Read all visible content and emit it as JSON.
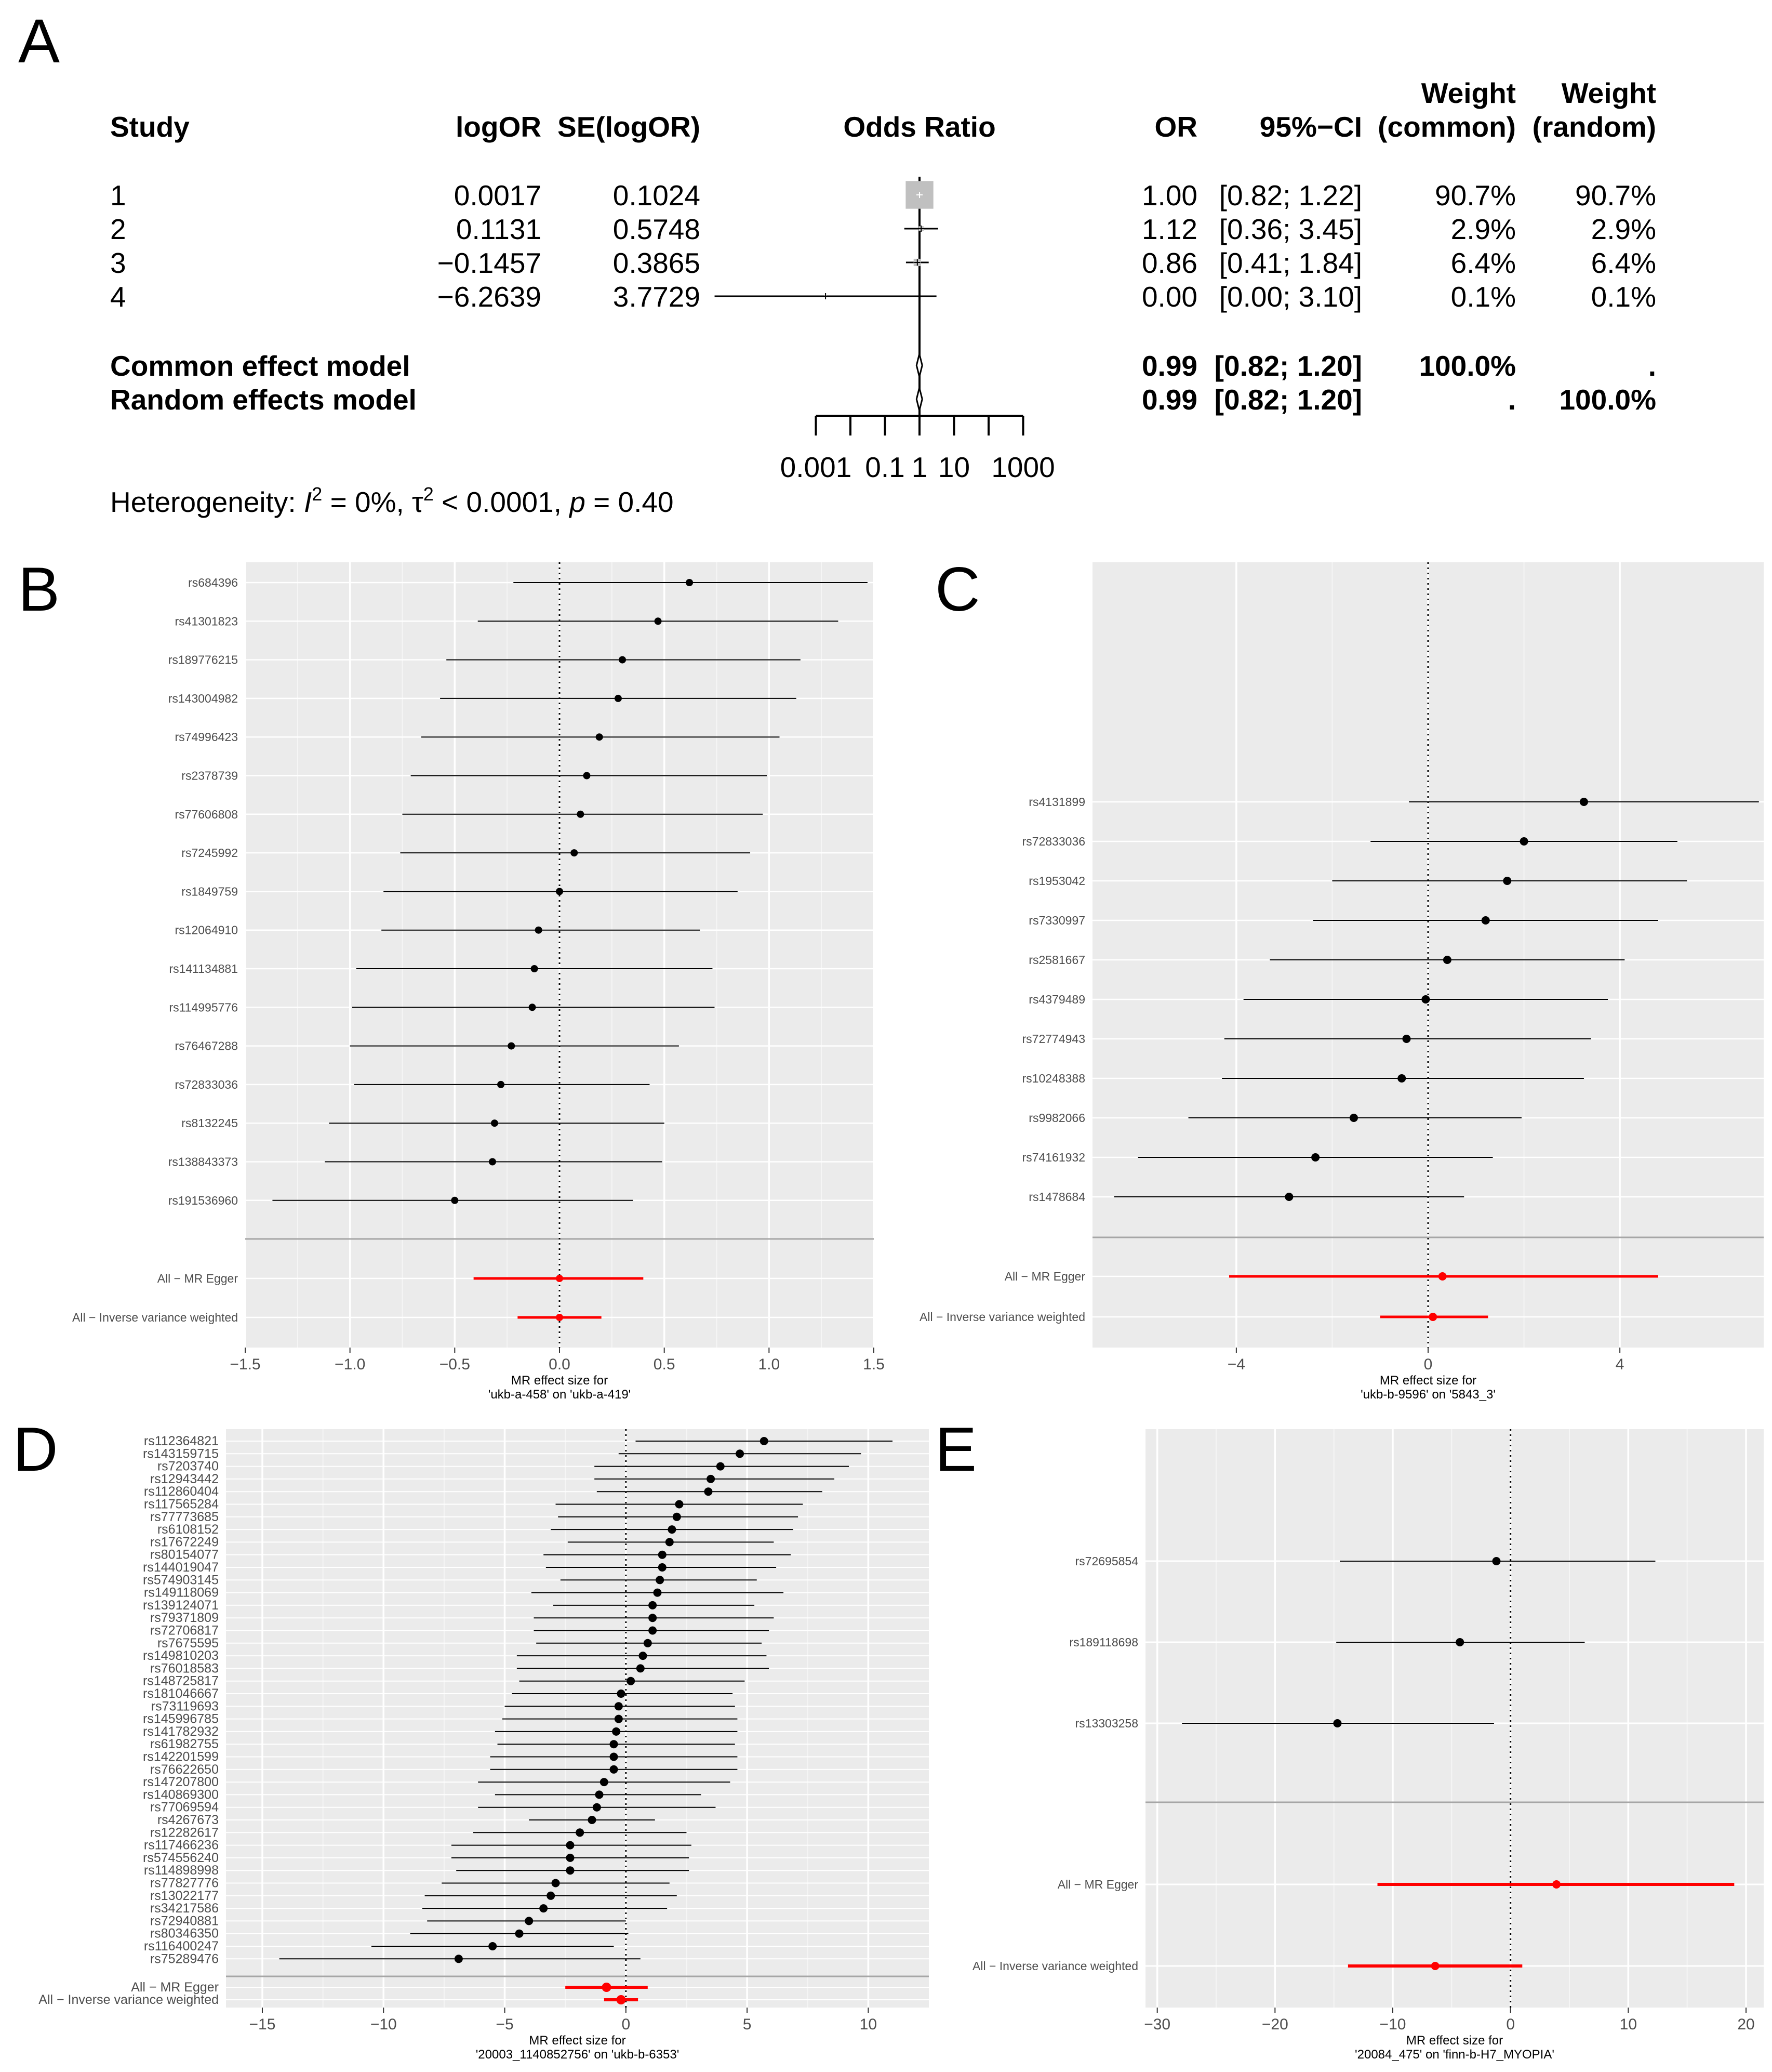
{
  "panels": [
    {
      "label": "A"
    },
    {
      "label": "B"
    },
    {
      "label": "C"
    },
    {
      "label": "D"
    },
    {
      "label": "E"
    }
  ],
  "chart_data": [
    {
      "id": "A",
      "type": "table",
      "subtype": "forest-meta-analysis",
      "headers": [
        "Study",
        "logOR",
        "SE(logOR)",
        "Odds Ratio",
        "OR",
        "95%−CI",
        "Weight",
        "(common)",
        "Weight",
        "(random)"
      ],
      "rows": [
        {
          "study": "1",
          "logor": "0.0017",
          "se": "0.1024",
          "or": "1.00",
          "ci": "[0.82; 1.22]",
          "w_common": "90.7%",
          "w_random": "90.7%",
          "est": 0.0017,
          "sev": 0.1024
        },
        {
          "study": "2",
          "logor": "0.1131",
          "se": "0.5748",
          "or": "1.12",
          "ci": "[0.36; 3.45]",
          "w_common": "2.9%",
          "w_random": "2.9%",
          "est": 0.1131,
          "sev": 0.5748
        },
        {
          "study": "3",
          "logor": "−0.1457",
          "se": "0.3865",
          "or": "0.86",
          "ci": "[0.41; 1.84]",
          "w_common": "6.4%",
          "w_random": "6.4%",
          "est": -0.1457,
          "sev": 0.3865
        },
        {
          "study": "4",
          "logor": "−6.2639",
          "se": "3.7729",
          "or": "0.00",
          "ci": "[0.00; 3.10]",
          "w_common": "0.1%",
          "w_random": "0.1%",
          "est": -6.2639,
          "sev": 3.7729
        }
      ],
      "models": [
        {
          "name": "Common effect model",
          "or": "0.99",
          "ci": "[0.82; 1.20]",
          "w_common": "100.0%",
          "w_random": ".",
          "est": -0.01,
          "lo": -0.198,
          "hi": 0.182
        },
        {
          "name": "Random effects model",
          "or": "0.99",
          "ci": "[0.82; 1.20]",
          "w_common": ".",
          "w_random": "100.0%",
          "est": -0.01,
          "lo": -0.198,
          "hi": 0.182
        }
      ],
      "axis": {
        "scale": "log10",
        "ticks": [
          "0.001",
          "0.1",
          "1",
          "10",
          "1000"
        ],
        "tick_values": [
          0.001,
          0.1,
          1,
          10,
          1000
        ]
      },
      "heterogeneity": {
        "prefix": "Heterogeneity: ",
        "i2": "I",
        "i2_rest": " = 0%, ",
        "tau": "τ",
        "tau_rest": " < 0.0001, ",
        "p": "p",
        "p_rest": " = 0.40"
      }
    },
    {
      "id": "B",
      "type": "scatter",
      "subtype": "mr-forest",
      "xlabel": "MR effect size for",
      "xlabel2": "'ukb-a-458' on 'ukb-a-419'",
      "xlim": [
        -1.5,
        1.5
      ],
      "ticks": [
        -1.5,
        -1.0,
        -0.5,
        0.0,
        0.5,
        1.0,
        1.5
      ],
      "tick_labels": [
        "−1.5",
        "−1.0",
        "−0.5",
        "0.0",
        "0.5",
        "1.0",
        "1.5"
      ],
      "snps": [
        {
          "name": "rs684396",
          "b": 0.62,
          "lo": -0.22,
          "hi": 1.47
        },
        {
          "name": "rs41301823",
          "b": 0.47,
          "lo": -0.39,
          "hi": 1.33
        },
        {
          "name": "rs189776215",
          "b": 0.3,
          "lo": -0.54,
          "hi": 1.15
        },
        {
          "name": "rs143004982",
          "b": 0.28,
          "lo": -0.57,
          "hi": 1.13
        },
        {
          "name": "rs74996423",
          "b": 0.19,
          "lo": -0.66,
          "hi": 1.05
        },
        {
          "name": "rs2378739",
          "b": 0.13,
          "lo": -0.71,
          "hi": 0.99
        },
        {
          "name": "rs77606808",
          "b": 0.1,
          "lo": -0.75,
          "hi": 0.97
        },
        {
          "name": "rs7245992",
          "b": 0.07,
          "lo": -0.76,
          "hi": 0.91
        },
        {
          "name": "rs1849759",
          "b": 0.0,
          "lo": -0.84,
          "hi": 0.85
        },
        {
          "name": "rs12064910",
          "b": -0.1,
          "lo": -0.85,
          "hi": 0.67
        },
        {
          "name": "rs141134881",
          "b": -0.12,
          "lo": -0.97,
          "hi": 0.73
        },
        {
          "name": "rs114995776",
          "b": -0.13,
          "lo": -0.99,
          "hi": 0.74
        },
        {
          "name": "rs76467288",
          "b": -0.23,
          "lo": -1.0,
          "hi": 0.57
        },
        {
          "name": "rs72833036",
          "b": -0.28,
          "lo": -0.98,
          "hi": 0.43
        },
        {
          "name": "rs8132245",
          "b": -0.31,
          "lo": -1.1,
          "hi": 0.5
        },
        {
          "name": "rs138843373",
          "b": -0.32,
          "lo": -1.12,
          "hi": 0.49
        },
        {
          "name": "rs191536960",
          "b": -0.5,
          "lo": -1.37,
          "hi": 0.35
        }
      ],
      "summary": [
        {
          "name": "All − MR Egger",
          "b": 0.0,
          "lo": -0.41,
          "hi": 0.4
        },
        {
          "name": "All − Inverse variance weighted",
          "b": 0.0,
          "lo": -0.2,
          "hi": 0.2
        }
      ]
    },
    {
      "id": "C",
      "type": "scatter",
      "subtype": "mr-forest",
      "xlabel": "MR effect size for",
      "xlabel2": "'ukb-b-9596' on '5843_3'",
      "xlim": [
        -7.0,
        7.0
      ],
      "ticks": [
        -4,
        0,
        4
      ],
      "tick_labels": [
        "−4",
        "0",
        "4"
      ],
      "snps": [
        {
          "name": "rs4131899",
          "b": 3.25,
          "lo": -0.4,
          "hi": 6.9
        },
        {
          "name": "rs72833036",
          "b": 2.0,
          "lo": -1.2,
          "hi": 5.2
        },
        {
          "name": "rs1953042",
          "b": 1.65,
          "lo": -2.0,
          "hi": 5.4
        },
        {
          "name": "rs7330997",
          "b": 1.2,
          "lo": -2.4,
          "hi": 4.8
        },
        {
          "name": "rs2581667",
          "b": 0.4,
          "lo": -3.3,
          "hi": 4.1
        },
        {
          "name": "rs4379489",
          "b": -0.05,
          "lo": -3.85,
          "hi": 3.75
        },
        {
          "name": "rs72774943",
          "b": -0.45,
          "lo": -4.25,
          "hi": 3.4
        },
        {
          "name": "rs10248388",
          "b": -0.55,
          "lo": -4.3,
          "hi": 3.25
        },
        {
          "name": "rs9982066",
          "b": -1.55,
          "lo": -5.0,
          "hi": 1.95
        },
        {
          "name": "rs74161932",
          "b": -2.35,
          "lo": -6.05,
          "hi": 1.35
        },
        {
          "name": "rs1478684",
          "b": -2.9,
          "lo": -6.55,
          "hi": 0.75
        }
      ],
      "summary": [
        {
          "name": "All − MR Egger",
          "b": 0.3,
          "lo": -4.15,
          "hi": 4.8
        },
        {
          "name": "All − Inverse variance weighted",
          "b": 0.1,
          "lo": -1.0,
          "hi": 1.25
        }
      ]
    },
    {
      "id": "D",
      "type": "scatter",
      "subtype": "mr-forest",
      "xlabel": "MR effect size for",
      "xlabel2": "'20003_1140852756' on 'ukb-b-6353'",
      "xlim": [
        -16.5,
        12.5
      ],
      "ticks": [
        -15,
        -10,
        -5,
        0,
        5,
        10
      ],
      "tick_labels": [
        "−15",
        "−10",
        "−5",
        "0",
        "5",
        "10"
      ],
      "snps": [
        {
          "name": "rs112364821",
          "b": 5.7,
          "lo": 0.4,
          "hi": 11.0
        },
        {
          "name": "rs143159715",
          "b": 4.7,
          "lo": -0.3,
          "hi": 9.7
        },
        {
          "name": "rs7203740",
          "b": 3.9,
          "lo": -1.3,
          "hi": 9.2
        },
        {
          "name": "rs12943442",
          "b": 3.5,
          "lo": -1.3,
          "hi": 8.6
        },
        {
          "name": "rs112860404",
          "b": 3.4,
          "lo": -1.2,
          "hi": 8.1
        },
        {
          "name": "rs117565284",
          "b": 2.2,
          "lo": -2.9,
          "hi": 7.3
        },
        {
          "name": "rs77773685",
          "b": 2.1,
          "lo": -2.8,
          "hi": 7.1
        },
        {
          "name": "rs6108152",
          "b": 1.9,
          "lo": -3.1,
          "hi": 6.9
        },
        {
          "name": "rs17672249",
          "b": 1.8,
          "lo": -2.4,
          "hi": 6.1
        },
        {
          "name": "rs80154077",
          "b": 1.5,
          "lo": -3.4,
          "hi": 6.8
        },
        {
          "name": "rs144019047",
          "b": 1.5,
          "lo": -3.3,
          "hi": 6.2
        },
        {
          "name": "rs574903145",
          "b": 1.4,
          "lo": -2.7,
          "hi": 5.4
        },
        {
          "name": "rs149118069",
          "b": 1.3,
          "lo": -3.9,
          "hi": 6.5
        },
        {
          "name": "rs139124071",
          "b": 1.1,
          "lo": -3.0,
          "hi": 5.3
        },
        {
          "name": "rs79371809",
          "b": 1.1,
          "lo": -3.8,
          "hi": 6.1
        },
        {
          "name": "rs72706817",
          "b": 1.1,
          "lo": -3.8,
          "hi": 5.9
        },
        {
          "name": "rs7675595",
          "b": 0.9,
          "lo": -3.7,
          "hi": 5.6
        },
        {
          "name": "rs149810203",
          "b": 0.7,
          "lo": -4.5,
          "hi": 5.8
        },
        {
          "name": "rs76018583",
          "b": 0.6,
          "lo": -4.5,
          "hi": 5.9
        },
        {
          "name": "rs148725817",
          "b": 0.2,
          "lo": -4.4,
          "hi": 4.9
        },
        {
          "name": "rs181046667",
          "b": -0.2,
          "lo": -4.7,
          "hi": 4.4
        },
        {
          "name": "rs73119693",
          "b": -0.3,
          "lo": -5.0,
          "hi": 4.5
        },
        {
          "name": "rs145996785",
          "b": -0.3,
          "lo": -5.1,
          "hi": 4.6
        },
        {
          "name": "rs141782932",
          "b": -0.4,
          "lo": -5.4,
          "hi": 4.6
        },
        {
          "name": "rs61982755",
          "b": -0.5,
          "lo": -5.3,
          "hi": 4.5
        },
        {
          "name": "rs142201599",
          "b": -0.5,
          "lo": -5.6,
          "hi": 4.6
        },
        {
          "name": "rs76622650",
          "b": -0.5,
          "lo": -5.6,
          "hi": 4.6
        },
        {
          "name": "rs147207800",
          "b": -0.9,
          "lo": -6.1,
          "hi": 4.3
        },
        {
          "name": "rs140869300",
          "b": -1.1,
          "lo": -5.4,
          "hi": 3.1
        },
        {
          "name": "rs77069594",
          "b": -1.2,
          "lo": -6.1,
          "hi": 3.7
        },
        {
          "name": "rs4267673",
          "b": -1.4,
          "lo": -4.0,
          "hi": 1.2
        },
        {
          "name": "rs12282617",
          "b": -1.9,
          "lo": -6.3,
          "hi": 2.5
        },
        {
          "name": "rs117466236",
          "b": -2.3,
          "lo": -7.2,
          "hi": 2.7
        },
        {
          "name": "rs574556240",
          "b": -2.3,
          "lo": -7.2,
          "hi": 2.6
        },
        {
          "name": "rs114898998",
          "b": -2.3,
          "lo": -7.0,
          "hi": 2.6
        },
        {
          "name": "rs77827776",
          "b": -2.9,
          "lo": -7.6,
          "hi": 1.8
        },
        {
          "name": "rs13022177",
          "b": -3.1,
          "lo": -8.3,
          "hi": 2.1
        },
        {
          "name": "rs34217586",
          "b": -3.4,
          "lo": -8.4,
          "hi": 1.7
        },
        {
          "name": "rs72940881",
          "b": -4.0,
          "lo": -8.2,
          "hi": 0.0
        },
        {
          "name": "rs80346350",
          "b": -4.4,
          "lo": -8.9,
          "hi": 0.1
        },
        {
          "name": "rs116400247",
          "b": -5.5,
          "lo": -10.5,
          "hi": -0.5
        },
        {
          "name": "rs75289476",
          "b": -6.9,
          "lo": -14.3,
          "hi": 0.6
        }
      ],
      "summary": [
        {
          "name": "All − MR Egger",
          "b": -0.8,
          "lo": -2.5,
          "hi": 0.9
        },
        {
          "name": "All − Inverse variance weighted",
          "b": -0.2,
          "lo": -0.9,
          "hi": 0.5
        }
      ]
    },
    {
      "id": "E",
      "type": "scatter",
      "subtype": "mr-forest",
      "xlabel": "MR effect size for",
      "xlabel2": "'20084_475' on 'finn-b-H7_MYOPIA'",
      "xlim": [
        -31.0,
        21.5
      ],
      "ticks": [
        -30,
        -20,
        -10,
        0,
        10,
        20
      ],
      "tick_labels": [
        "−30",
        "−20",
        "−10",
        "0",
        "10",
        "20"
      ],
      "snps": [
        {
          "name": "rs72695854",
          "b": -1.2,
          "lo": -14.5,
          "hi": 12.3
        },
        {
          "name": "rs189118698",
          "b": -4.3,
          "lo": -14.8,
          "hi": 6.3
        },
        {
          "name": "rs13303258",
          "b": -14.7,
          "lo": -27.9,
          "hi": -1.4
        }
      ],
      "summary": [
        {
          "name": "All − MR Egger",
          "b": 3.9,
          "lo": -11.3,
          "hi": 19.0
        },
        {
          "name": "All − Inverse variance weighted",
          "b": -6.4,
          "lo": -13.8,
          "hi": 1.0
        }
      ]
    }
  ]
}
